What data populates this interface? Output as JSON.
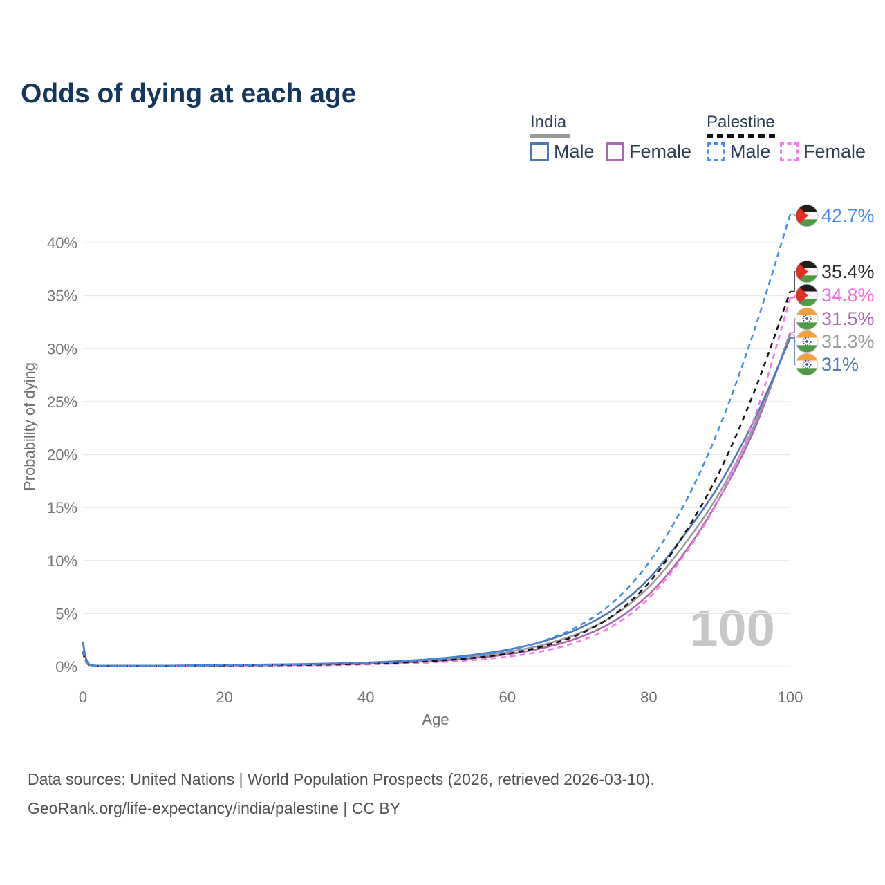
{
  "title": "Odds of dying at each age",
  "watermark": "100",
  "legend": {
    "groups": [
      {
        "id": "india",
        "label": "India",
        "line_style": "solid",
        "line_color": "#9a9a9a",
        "items": [
          {
            "id": "india_male",
            "label": "Male",
            "color": "#4b79b6",
            "dashed": false
          },
          {
            "id": "india_female",
            "label": "Female",
            "color": "#ac68ae",
            "dashed": false
          }
        ]
      },
      {
        "id": "palestine",
        "label": "Palestine",
        "line_style": "dashed",
        "line_color": "#141414",
        "items": [
          {
            "id": "palestine_male",
            "label": "Male",
            "color": "#3e8ef4",
            "dashed": true
          },
          {
            "id": "palestine_female",
            "label": "Female",
            "color": "#fb78e8",
            "dashed": true
          }
        ]
      }
    ]
  },
  "chart_data": {
    "type": "line",
    "title": "Odds of dying at each age",
    "xlabel": "Age",
    "ylabel": "Probability of dying",
    "xlim": [
      0,
      100
    ],
    "ylim": [
      0,
      40
    ],
    "x_ticks": [
      0,
      20,
      40,
      60,
      80,
      100
    ],
    "y_ticks": [
      "0%",
      "5%",
      "10%",
      "15%",
      "20%",
      "25%",
      "30%",
      "35%",
      "40%"
    ],
    "grid": "horizontal",
    "legend_position": "top-right",
    "x": [
      0,
      1,
      5,
      10,
      15,
      20,
      25,
      30,
      35,
      40,
      45,
      50,
      55,
      60,
      65,
      70,
      75,
      80,
      85,
      90,
      95,
      100
    ],
    "series": [
      {
        "id": "india_female",
        "name": "India Female",
        "color": "#ac68ae",
        "dashed": false,
        "flag": "india",
        "values": [
          2.2,
          0.14,
          0.07,
          0.06,
          0.07,
          0.09,
          0.12,
          0.15,
          0.19,
          0.26,
          0.37,
          0.53,
          0.78,
          1.15,
          1.75,
          2.7,
          4.25,
          6.8,
          10.7,
          15.9,
          22.5,
          31.5
        ],
        "end_label": {
          "text": "31.5%",
          "color": "#ac68ae"
        }
      },
      {
        "id": "india_total",
        "name": "India Both sexes",
        "color": "#9b9b9b",
        "dashed": false,
        "flag": "india",
        "values": [
          2.25,
          0.14,
          0.07,
          0.06,
          0.09,
          0.12,
          0.15,
          0.18,
          0.23,
          0.31,
          0.44,
          0.63,
          0.92,
          1.36,
          2.04,
          3.1,
          4.8,
          7.5,
          11.5,
          16.4,
          22.9,
          31.3
        ],
        "end_label": {
          "text": "31.3%",
          "color": "#9b9b9b"
        }
      },
      {
        "id": "india_male",
        "name": "India Male",
        "color": "#4b79b6",
        "dashed": false,
        "flag": "india",
        "values": [
          2.3,
          0.15,
          0.08,
          0.07,
          0.1,
          0.15,
          0.18,
          0.22,
          0.28,
          0.37,
          0.52,
          0.74,
          1.08,
          1.58,
          2.35,
          3.55,
          5.4,
          8.3,
          12.4,
          17.2,
          23.4,
          31.0
        ],
        "end_label": {
          "text": "31%",
          "color": "#4b79b6"
        }
      },
      {
        "id": "palestine_female",
        "name": "Palestine Female",
        "color": "#fb78e8",
        "dashed": true,
        "flag": "palestine",
        "values": [
          1.3,
          0.09,
          0.04,
          0.04,
          0.05,
          0.07,
          0.08,
          0.1,
          0.13,
          0.19,
          0.27,
          0.4,
          0.6,
          0.92,
          1.45,
          2.35,
          3.85,
          6.45,
          10.5,
          15.9,
          23.6,
          34.8
        ],
        "end_label": {
          "text": "34.8%",
          "color": "#f967e0"
        }
      },
      {
        "id": "palestine_total",
        "name": "Palestine Both sexes",
        "color": "#141414",
        "dashed": true,
        "flag": "palestine",
        "values": [
          1.4,
          0.09,
          0.05,
          0.04,
          0.06,
          0.09,
          0.12,
          0.14,
          0.19,
          0.26,
          0.37,
          0.54,
          0.8,
          1.2,
          1.9,
          3.0,
          4.85,
          7.9,
          12.5,
          18.4,
          26.1,
          35.4
        ],
        "end_label": {
          "text": "35.4%",
          "color": "#2b2b2b"
        }
      },
      {
        "id": "palestine_male",
        "name": "Palestine Male",
        "color": "#3e8ef4",
        "dashed": true,
        "flag": "palestine",
        "values": [
          1.5,
          0.1,
          0.05,
          0.05,
          0.08,
          0.12,
          0.15,
          0.19,
          0.25,
          0.34,
          0.48,
          0.7,
          1.02,
          1.52,
          2.4,
          3.8,
          6.1,
          9.8,
          15.3,
          22.6,
          31.9,
          42.7
        ],
        "end_label": {
          "text": "42.7%",
          "color": "#4a8df0"
        }
      }
    ],
    "hover_age_indicator": "100"
  },
  "footer": {
    "line1": "Data sources: United Nations | World Population Prospects (2026, retrieved 2026-03-10).",
    "line2": "GeoRank.org/life-expectancy/india/palestine | CC BY"
  }
}
